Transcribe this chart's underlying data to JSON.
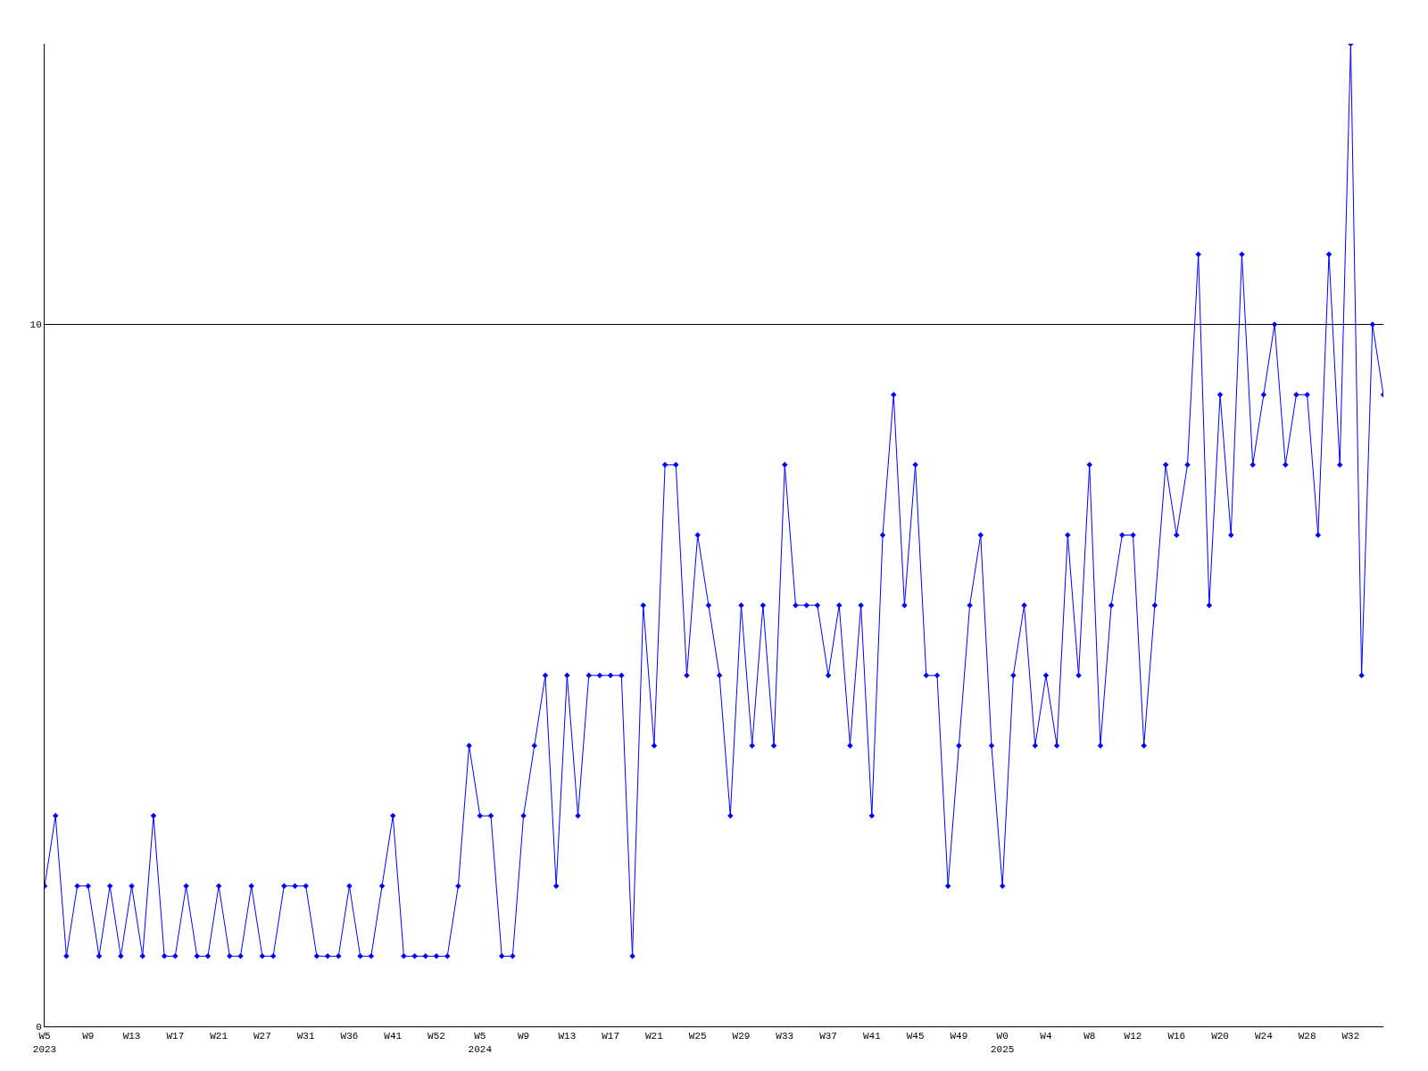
{
  "chart_data": {
    "type": "line",
    "categories": [
      "W5\n2023",
      null,
      null,
      null,
      "W9",
      null,
      null,
      null,
      "W13",
      null,
      null,
      null,
      "W17",
      null,
      null,
      null,
      "W21",
      null,
      null,
      null,
      "W27",
      null,
      null,
      null,
      "W31",
      null,
      null,
      null,
      "W36",
      null,
      null,
      null,
      "W41",
      null,
      null,
      null,
      "W52",
      null,
      null,
      null,
      "W5\n2024",
      null,
      null,
      null,
      "W9",
      null,
      null,
      null,
      "W13",
      null,
      null,
      null,
      "W17",
      null,
      null,
      null,
      "W21",
      null,
      null,
      null,
      "W25",
      null,
      null,
      null,
      "W29",
      null,
      null,
      null,
      "W33",
      null,
      null,
      null,
      "W37",
      null,
      null,
      null,
      "W41",
      null,
      null,
      null,
      "W45",
      null,
      null,
      null,
      "W49",
      null,
      null,
      null,
      "W0\n2025",
      null,
      null,
      null,
      "W4",
      null,
      null,
      null,
      "W8",
      null,
      null,
      null,
      "W12",
      null,
      null,
      null,
      "W16",
      null,
      null,
      null,
      "W20",
      null,
      null,
      null,
      "W24",
      null,
      null,
      null,
      "W28",
      null,
      null,
      null,
      "W32",
      null,
      null,
      null
    ],
    "series": [
      {
        "color": "#0000ff",
        "values": [
          2,
          3,
          1,
          2,
          2,
          1,
          2,
          1,
          2,
          1,
          3,
          1,
          1,
          2,
          1,
          1,
          2,
          1,
          1,
          2,
          1,
          1,
          2,
          2,
          2,
          1,
          1,
          1,
          2,
          1,
          1,
          2,
          3,
          1,
          1,
          1,
          1,
          1,
          2,
          4,
          3,
          3,
          1,
          1,
          3,
          4,
          5,
          2,
          5,
          3,
          5,
          5,
          5,
          5,
          1,
          6,
          4,
          8,
          8,
          5,
          7,
          6,
          5,
          3,
          6,
          4,
          6,
          4,
          8,
          6,
          6,
          6,
          5,
          6,
          4,
          6,
          3,
          7,
          9,
          6,
          8,
          5,
          5,
          2,
          4,
          6,
          7,
          4,
          2,
          5,
          6,
          4,
          5,
          4,
          7,
          5,
          8,
          4,
          6,
          7,
          7,
          4,
          6,
          8,
          7,
          8,
          11,
          6,
          9,
          7,
          11,
          8,
          9,
          10,
          8,
          9,
          9,
          7,
          11,
          8,
          14,
          5,
          10,
          9
        ]
      }
    ],
    "ylim": [
      0,
      14
    ],
    "yticks": [
      0,
      10
    ],
    "grid": "y",
    "marker": "diamond",
    "line_style": "solid"
  }
}
